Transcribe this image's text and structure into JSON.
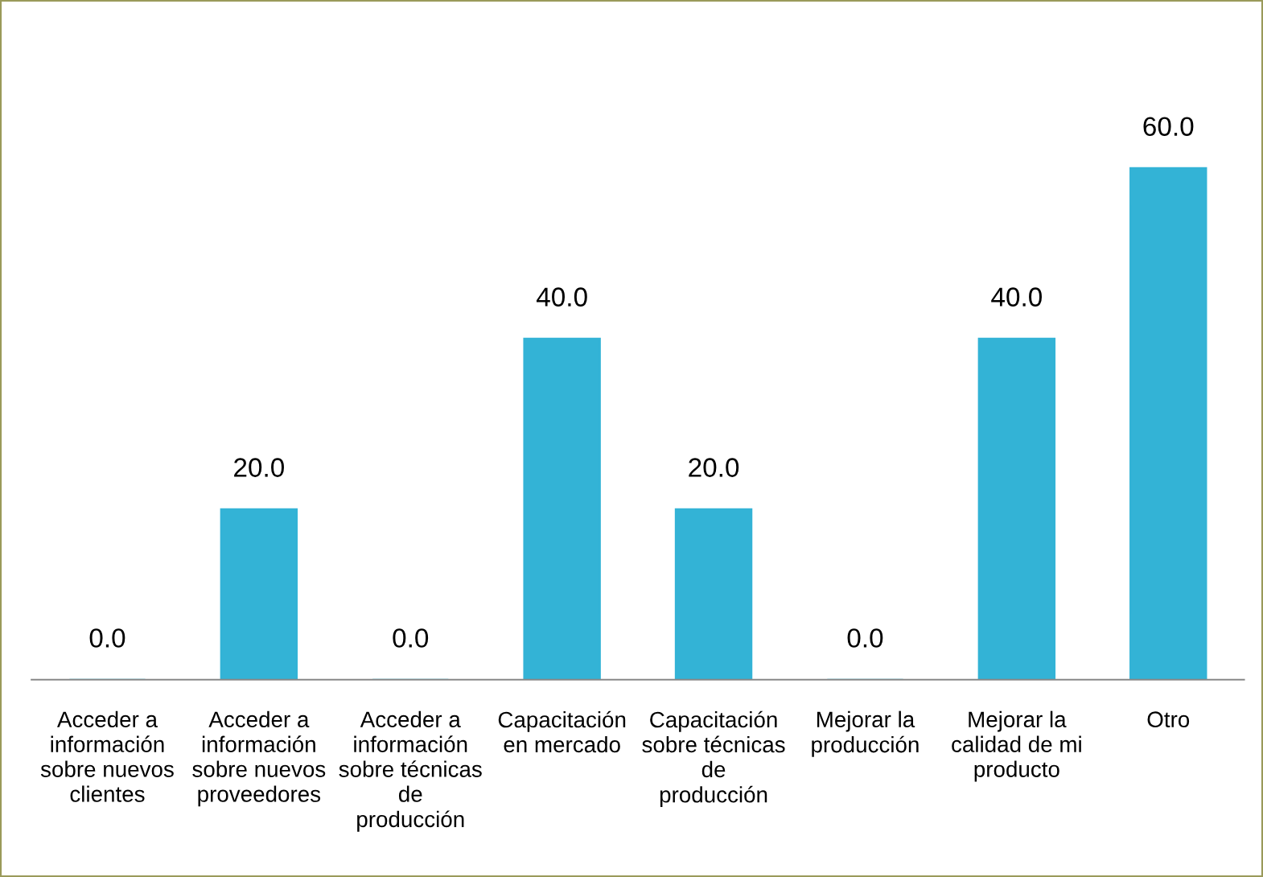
{
  "chart_data": {
    "type": "bar",
    "categories": [
      "Acceder a\ninformación\nsobre nuevos\nclientes",
      "Acceder a\ninformación\nsobre nuevos\nproveedores",
      "Acceder a\ninformación\nsobre técnicas\nde\nproducción",
      "Capacitación\nen mercado",
      "Capacitación\nsobre técnicas\nde\nproducción",
      "Mejorar la\nproducción",
      "Mejorar la\ncalidad de mi\nproducto",
      "Otro"
    ],
    "values": [
      0.0,
      20.0,
      0.0,
      40.0,
      20.0,
      0.0,
      40.0,
      60.0
    ],
    "color": "#33b3d6",
    "value_labels": [
      "0.0",
      "20.0",
      "0.0",
      "40.0",
      "20.0",
      "0.0",
      "40.0",
      "60.0"
    ],
    "grid": false,
    "legend": false
  }
}
